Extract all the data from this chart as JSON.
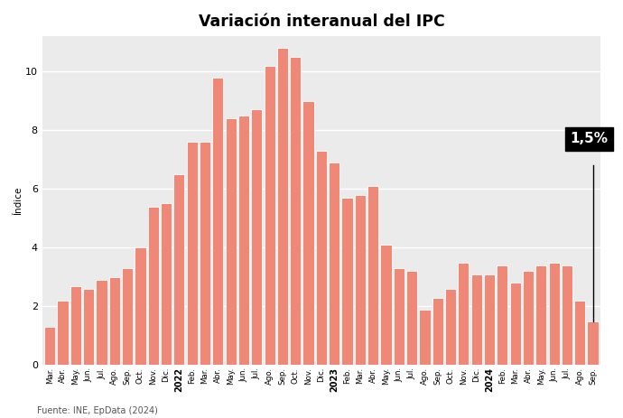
{
  "title": "Variación interanual del IPC",
  "ylabel": "Índice",
  "source": "Fuente: INE, EpData (2024)",
  "bar_color": "#F08878",
  "background_color": "#EBEBEB",
  "figure_bg": "#FFFFFF",
  "annotation_value": "1,5%",
  "ylim": [
    0,
    11.2
  ],
  "yticks": [
    0,
    2,
    4,
    6,
    8,
    10
  ],
  "labels": [
    "Mar.",
    "Abr.",
    "May.",
    "Jun.",
    "Jul.",
    "Ago.",
    "Sep.",
    "Oct.",
    "Nov.",
    "Dic.",
    "2022",
    "Feb.",
    "Mar.",
    "Abr.",
    "May.",
    "Jun.",
    "Jul.",
    "Ago.",
    "Sep.",
    "Oct.",
    "Nov.",
    "Dic.",
    "2023",
    "Feb.",
    "Mar.",
    "Abr.",
    "May.",
    "Jun.",
    "Jul.",
    "Ago.",
    "Sep.",
    "Oct.",
    "Nov.",
    "Dic.",
    "2024",
    "Feb.",
    "Mar.",
    "Abr.",
    "May.",
    "Jun.",
    "Jul.",
    "Ago.",
    "Sep."
  ],
  "bold_labels": [
    "2022",
    "2023",
    "2024"
  ],
  "values": [
    1.3,
    2.2,
    2.7,
    2.6,
    2.9,
    3.0,
    3.3,
    4.0,
    5.4,
    5.5,
    6.5,
    7.6,
    7.6,
    9.8,
    8.4,
    8.5,
    8.7,
    10.2,
    10.8,
    10.5,
    9.0,
    7.3,
    6.9,
    5.7,
    5.8,
    6.1,
    4.1,
    3.3,
    3.2,
    1.9,
    2.3,
    2.6,
    3.5,
    3.1,
    3.1,
    3.4,
    2.8,
    3.2,
    3.4,
    3.5,
    3.4,
    2.2,
    1.5
  ]
}
